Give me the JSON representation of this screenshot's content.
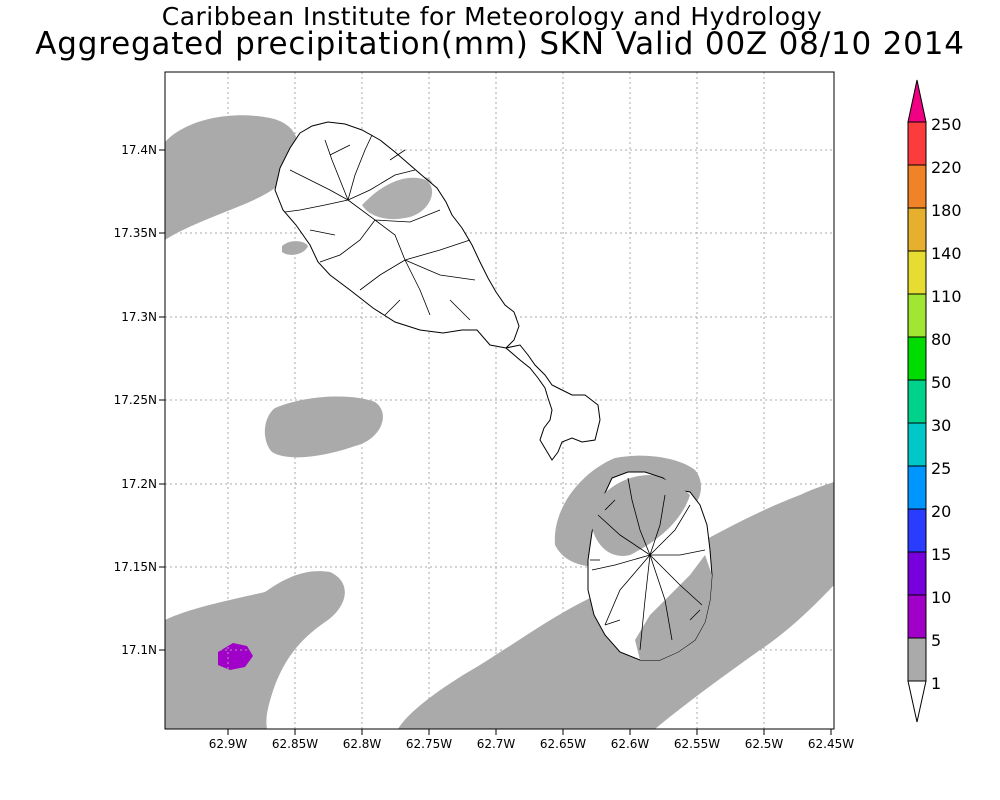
{
  "header": {
    "title_line1": "Caribbean Institute for Meteorology and Hydrology",
    "title_line2": "Aggregated precipitation(mm) SKN Valid 00Z 08/10 2014"
  },
  "map": {
    "lon_ticks": [
      "62.9W",
      "62.85W",
      "62.8W",
      "62.75W",
      "62.7W",
      "62.65W",
      "62.6W",
      "62.55W",
      "62.5W",
      "62.45W"
    ],
    "lat_ticks": [
      "17.4N",
      "17.35N",
      "17.3N",
      "17.25N",
      "17.2N",
      "17.15N",
      "17.1N"
    ],
    "land_color": "#ffffff",
    "coast_color": "#000000",
    "grid": true
  },
  "colorbar": {
    "levels": [
      {
        "label": "1",
        "color": "#aaaaaa"
      },
      {
        "label": "5",
        "color": "#a000c8"
      },
      {
        "label": "10",
        "color": "#7800dc"
      },
      {
        "label": "15",
        "color": "#2a3cff"
      },
      {
        "label": "20",
        "color": "#0096ff"
      },
      {
        "label": "25",
        "color": "#00c8c8"
      },
      {
        "label": "30",
        "color": "#00d28c"
      },
      {
        "label": "50",
        "color": "#00dc00"
      },
      {
        "label": "80",
        "color": "#a0e632"
      },
      {
        "label": "110",
        "color": "#e6dc32"
      },
      {
        "label": "140",
        "color": "#e6af2d"
      },
      {
        "label": "180",
        "color": "#f08228"
      },
      {
        "label": "220",
        "color": "#fa3c3c"
      },
      {
        "label": "250",
        "color": "#f00082"
      }
    ],
    "under_color": "#ffffff",
    "over_color": "#f00082"
  }
}
